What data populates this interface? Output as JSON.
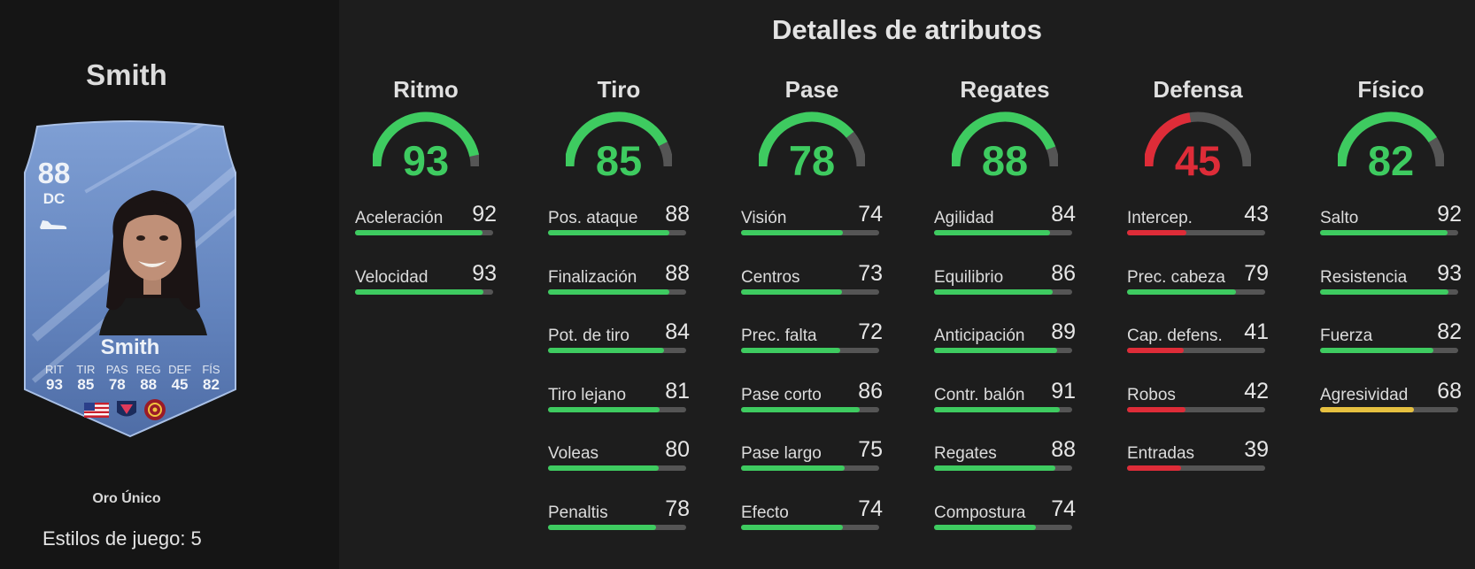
{
  "player": {
    "name": "Smith",
    "card_name": "Smith",
    "rating": "88",
    "position": "DC",
    "face_stats": [
      {
        "label": "RIT",
        "value": "93"
      },
      {
        "label": "TIR",
        "value": "85"
      },
      {
        "label": "PAS",
        "value": "78"
      },
      {
        "label": "REG",
        "value": "88"
      },
      {
        "label": "DEF",
        "value": "45"
      },
      {
        "label": "FÍS",
        "value": "82"
      }
    ],
    "rarity": "Oro Único",
    "playstyles": "Estilos de juego: 5"
  },
  "title": "Detalles de atributos",
  "colors": {
    "high": "#3ecb60",
    "mid": "#e6c040",
    "low": "#de2c38",
    "track": "#555555"
  },
  "categories": [
    {
      "name": "Ritmo",
      "value": "93",
      "attributes": [
        {
          "name": "Aceleración",
          "value": "92"
        },
        {
          "name": "Velocidad",
          "value": "93"
        }
      ]
    },
    {
      "name": "Tiro",
      "value": "85",
      "attributes": [
        {
          "name": "Pos. ataque",
          "value": "88"
        },
        {
          "name": "Finalización",
          "value": "88"
        },
        {
          "name": "Pot. de tiro",
          "value": "84"
        },
        {
          "name": "Tiro lejano",
          "value": "81"
        },
        {
          "name": "Voleas",
          "value": "80"
        },
        {
          "name": "Penaltis",
          "value": "78"
        }
      ]
    },
    {
      "name": "Pase",
      "value": "78",
      "attributes": [
        {
          "name": "Visión",
          "value": "74"
        },
        {
          "name": "Centros",
          "value": "73"
        },
        {
          "name": "Prec. falta",
          "value": "72"
        },
        {
          "name": "Pase corto",
          "value": "86"
        },
        {
          "name": "Pase largo",
          "value": "75"
        },
        {
          "name": "Efecto",
          "value": "74"
        }
      ]
    },
    {
      "name": "Regates",
      "value": "88",
      "attributes": [
        {
          "name": "Agilidad",
          "value": "84"
        },
        {
          "name": "Equilibrio",
          "value": "86"
        },
        {
          "name": "Anticipación",
          "value": "89"
        },
        {
          "name": "Contr. balón",
          "value": "91"
        },
        {
          "name": "Regates",
          "value": "88"
        },
        {
          "name": "Compostura",
          "value": "74"
        }
      ]
    },
    {
      "name": "Defensa",
      "value": "45",
      "attributes": [
        {
          "name": "Intercep.",
          "value": "43"
        },
        {
          "name": "Prec. cabeza",
          "value": "79"
        },
        {
          "name": "Cap. defens.",
          "value": "41"
        },
        {
          "name": "Robos",
          "value": "42"
        },
        {
          "name": "Entradas",
          "value": "39"
        }
      ]
    },
    {
      "name": "Físico",
      "value": "82",
      "attributes": [
        {
          "name": "Salto",
          "value": "92"
        },
        {
          "name": "Resistencia",
          "value": "93"
        },
        {
          "name": "Fuerza",
          "value": "82"
        },
        {
          "name": "Agresividad",
          "value": "68"
        }
      ]
    }
  ]
}
